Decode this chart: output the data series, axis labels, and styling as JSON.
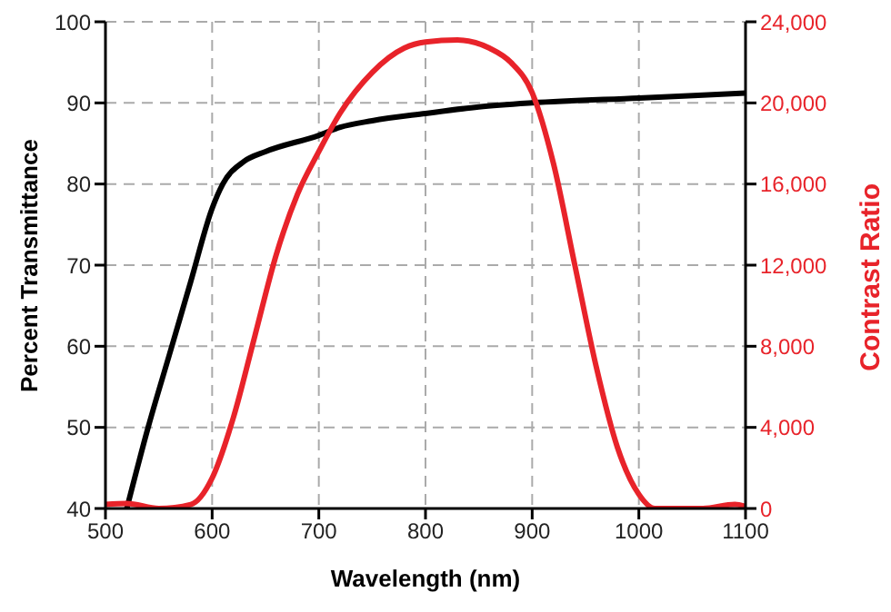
{
  "chart_data": {
    "type": "line",
    "xlabel": "Wavelength (nm)",
    "ylabel": "Percent Transmittance",
    "y2label": "Contrast Ratio",
    "xlim": [
      500,
      1100
    ],
    "xticks": [
      500,
      600,
      700,
      800,
      900,
      1000,
      1100
    ],
    "ylim": [
      40,
      100
    ],
    "yticks": [
      40,
      50,
      60,
      70,
      80,
      90,
      100
    ],
    "y2lim": [
      0,
      24000
    ],
    "y2ticks": [
      {
        "value": 0,
        "label": "0"
      },
      {
        "value": 4000,
        "label": "4,000"
      },
      {
        "value": 8000,
        "label": "8,000"
      },
      {
        "value": 12000,
        "label": "12,000"
      },
      {
        "value": 16000,
        "label": "16,000"
      },
      {
        "value": 20000,
        "label": "20,000"
      },
      {
        "value": 24000,
        "label": "24,000"
      }
    ],
    "grid": true,
    "line_style": "solid",
    "marker": "none",
    "series": [
      {
        "color": "#000000",
        "x": [
          520,
          540,
          560,
          580,
          600,
          610,
          630,
          650,
          700,
          720,
          750,
          800,
          850,
          900,
          1000,
          1100
        ],
        "values": [
          40,
          50,
          59,
          68,
          77,
          80,
          82.8,
          84,
          86,
          87,
          87.8,
          88.7,
          89.5,
          90,
          90.6,
          91.2
        ]
      },
      {
        "color": "#e8232a",
        "axis": "y2",
        "x": [
          500,
          520,
          550,
          580,
          600,
          620,
          640,
          660,
          680,
          700,
          720,
          750,
          780,
          800,
          830,
          860,
          880,
          900,
          920,
          940,
          960,
          980,
          1000,
          1015,
          1060,
          1090,
          1100
        ],
        "values": [
          200,
          250,
          0,
          200,
          1500,
          4500,
          8500,
          12500,
          15500,
          17600,
          19500,
          21500,
          22700,
          23000,
          23100,
          22700,
          22000,
          20500,
          17000,
          12000,
          7000,
          3000,
          700,
          0,
          0,
          200,
          100
        ]
      }
    ]
  }
}
